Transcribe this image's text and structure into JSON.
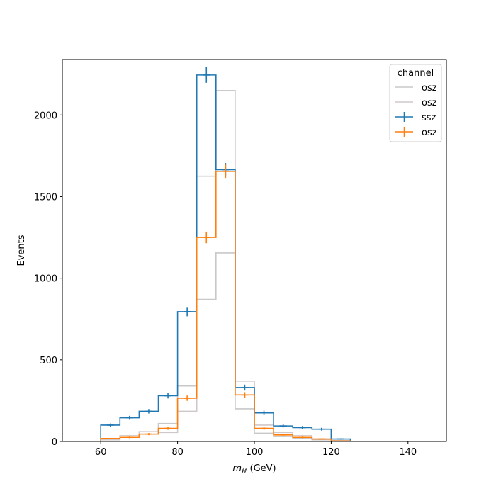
{
  "chart_data": {
    "type": "histogram-step",
    "xlabel_main": "m",
    "xlabel_sub": "ℓℓ",
    "xlabel_unit": "(GeV)",
    "ylabel": "Events",
    "xlim": [
      50,
      150
    ],
    "ylim": [
      0,
      2340
    ],
    "xticks": [
      60,
      80,
      100,
      120,
      140
    ],
    "yticks": [
      0,
      500,
      1000,
      1500,
      2000
    ],
    "bin_edges": [
      50,
      55,
      60,
      65,
      70,
      75,
      80,
      85,
      90,
      95,
      100,
      105,
      110,
      115,
      120,
      125,
      130,
      135,
      140,
      145,
      150
    ],
    "legend": {
      "title": "channel",
      "loc": "upper right"
    },
    "series": [
      {
        "name": "osz",
        "color": "#c8c8c8",
        "style": "step",
        "values": [
          0,
          0,
          15,
          25,
          45,
          110,
          340,
          870,
          1155,
          200,
          50,
          30,
          20,
          10,
          5,
          0,
          0,
          0,
          0,
          0
        ]
      },
      {
        "name": "osz",
        "color": "#d0c8c8",
        "style": "step",
        "values": [
          0,
          0,
          10,
          35,
          60,
          55,
          185,
          1625,
          2150,
          370,
          100,
          55,
          35,
          15,
          5,
          0,
          0,
          0,
          0,
          0
        ]
      },
      {
        "name": "ssz",
        "color": "#1f77b4",
        "style": "step-errorbar",
        "values": [
          0,
          0,
          100,
          145,
          185,
          280,
          795,
          2245,
          1665,
          330,
          175,
          95,
          85,
          75,
          15,
          0,
          0,
          0,
          0,
          0
        ]
      },
      {
        "name": "osz",
        "color": "#ff7f0e",
        "style": "step-errorbar",
        "values": [
          0,
          0,
          18,
          25,
          45,
          80,
          265,
          1250,
          1655,
          285,
          80,
          40,
          25,
          15,
          3,
          0,
          0,
          0,
          0,
          0
        ]
      }
    ]
  }
}
